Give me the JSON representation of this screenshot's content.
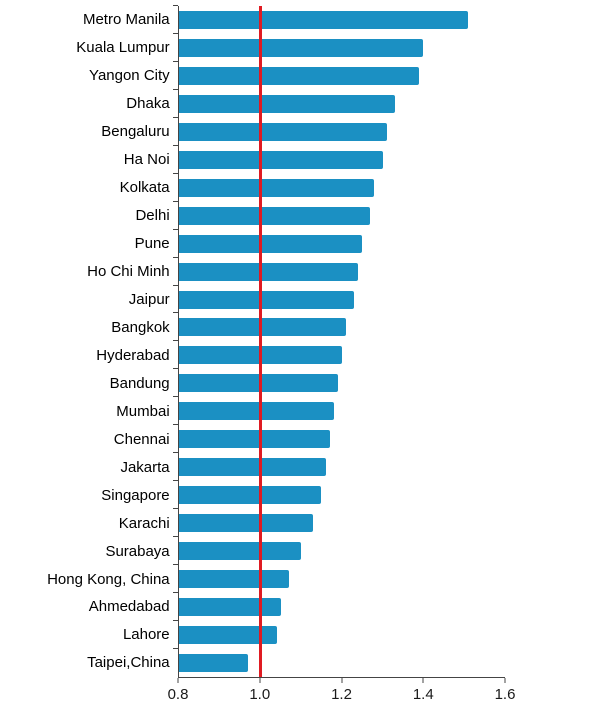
{
  "chart_data": {
    "type": "bar",
    "orientation": "horizontal",
    "title": "",
    "xlabel": "",
    "ylabel": "",
    "xlim": [
      0.8,
      1.6
    ],
    "x_ticks": [
      "0.8",
      "1.0",
      "1.2",
      "1.4",
      "1.6"
    ],
    "grid": false,
    "legend": false,
    "bar_color": "#1b90c3",
    "reference_line": {
      "value": 1.0,
      "color": "#e01b22"
    },
    "categories": [
      "Metro Manila",
      "Kuala Lumpur",
      "Yangon City",
      "Dhaka",
      "Bengaluru",
      "Ha Noi",
      "Kolkata",
      "Delhi",
      "Pune",
      "Ho Chi Minh",
      "Jaipur",
      "Bangkok",
      "Hyderabad",
      "Bandung",
      "Mumbai",
      "Chennai",
      "Jakarta",
      "Singapore",
      "Karachi",
      "Surabaya",
      "Hong Kong, China",
      "Ahmedabad",
      "Lahore",
      "Taipei,China"
    ],
    "values": [
      1.51,
      1.4,
      1.39,
      1.33,
      1.31,
      1.3,
      1.28,
      1.27,
      1.25,
      1.24,
      1.23,
      1.21,
      1.2,
      1.19,
      1.18,
      1.17,
      1.16,
      1.15,
      1.13,
      1.1,
      1.07,
      1.05,
      1.04,
      0.97
    ]
  }
}
